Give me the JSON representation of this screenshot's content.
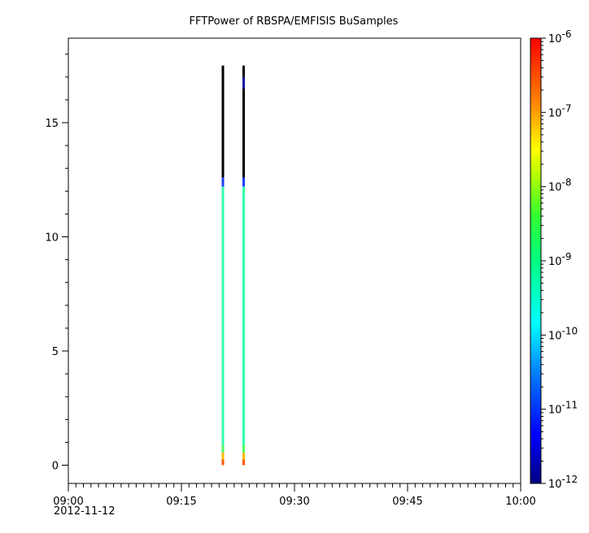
{
  "chart_data": {
    "type": "heatmap",
    "title": "FFTPower of RBSPA/EMFISIS  BuSamples",
    "xlabel": "",
    "ylabel": "",
    "x_range": [
      "09:00",
      "10:00"
    ],
    "x_ticks": [
      "09:00",
      "09:15",
      "09:30",
      "09:45",
      "10:00"
    ],
    "x_date_label": "2012-11-12",
    "ylim": [
      -0.8,
      18.7
    ],
    "y_ticks": [
      0,
      5,
      10,
      15
    ],
    "colorbar": {
      "scale": "log",
      "range": [
        1e-12,
        1e-06
      ],
      "tick_exponents": [
        -12,
        -11,
        -10,
        -9,
        -8,
        -7,
        -6
      ],
      "tick_base": "10"
    },
    "strips": [
      {
        "time": "09:20:30",
        "segments": [
          {
            "y_from": 0.0,
            "y_to": 0.25,
            "color": "#ff5500"
          },
          {
            "y_from": 0.25,
            "y_to": 0.55,
            "color": "#ffc000"
          },
          {
            "y_from": 0.55,
            "y_to": 0.9,
            "color": "#50ff60"
          },
          {
            "y_from": 0.9,
            "y_to": 12.2,
            "color": "#30ffb0"
          },
          {
            "y_from": 12.2,
            "y_to": 12.6,
            "color": "#1e3cff"
          },
          {
            "y_from": 12.6,
            "y_to": 17.5,
            "color": "#000000"
          }
        ]
      },
      {
        "time": "09:23:15",
        "segments": [
          {
            "y_from": 0.0,
            "y_to": 0.25,
            "color": "#ff5500"
          },
          {
            "y_from": 0.25,
            "y_to": 0.55,
            "color": "#ffc000"
          },
          {
            "y_from": 0.55,
            "y_to": 0.9,
            "color": "#50ff60"
          },
          {
            "y_from": 0.9,
            "y_to": 12.2,
            "color": "#30ffb0"
          },
          {
            "y_from": 12.2,
            "y_to": 12.6,
            "color": "#1e3cff"
          },
          {
            "y_from": 12.6,
            "y_to": 16.5,
            "color": "#000000"
          },
          {
            "y_from": 16.5,
            "y_to": 17.0,
            "color": "#1010a0"
          },
          {
            "y_from": 17.0,
            "y_to": 17.5,
            "color": "#000000"
          }
        ]
      }
    ]
  }
}
